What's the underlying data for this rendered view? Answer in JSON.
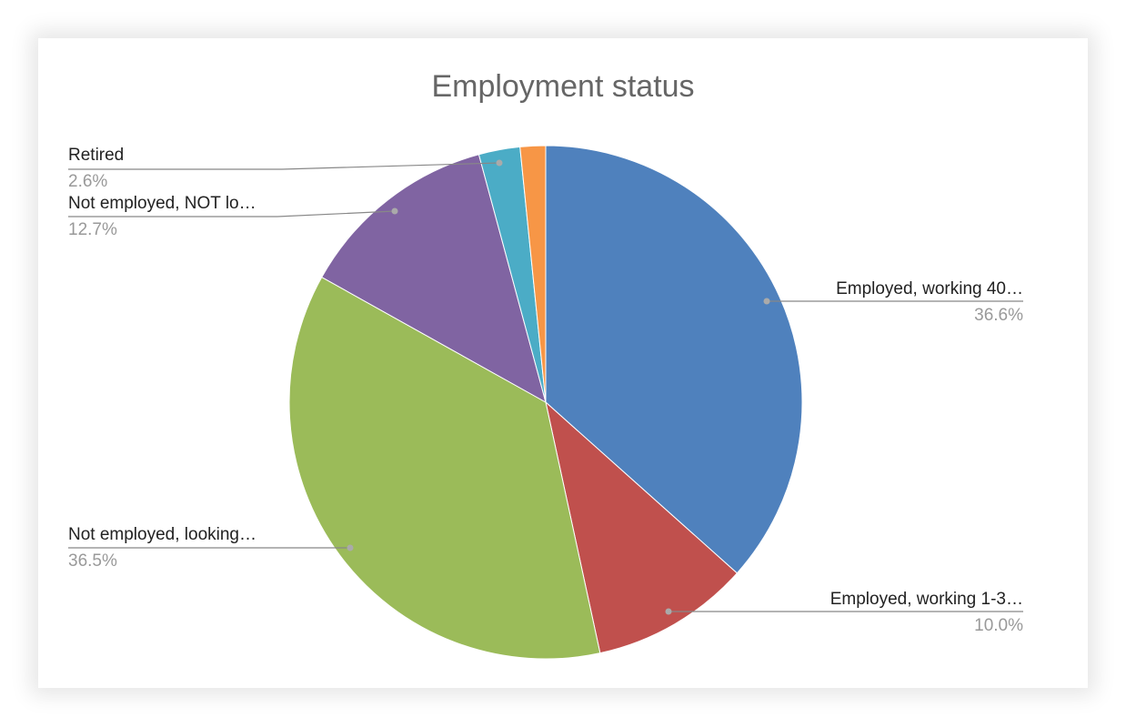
{
  "chart_data": {
    "type": "pie",
    "title": "Employment status",
    "categories": [
      "Employed, working 40…",
      "Employed, working 1-3…",
      "Not employed, looking…",
      "Not employed, NOT lo…",
      "Retired",
      null
    ],
    "values": [
      36.6,
      10.0,
      36.5,
      12.7,
      2.6,
      1.6
    ],
    "value_labels": [
      "36.6%",
      "10.0%",
      "36.5%",
      "12.7%",
      "2.6%",
      null
    ],
    "colors": [
      "#4f81bd",
      "#c0504d",
      "#9bbb59",
      "#8064a2",
      "#4bacc6",
      "#f79646"
    ]
  }
}
